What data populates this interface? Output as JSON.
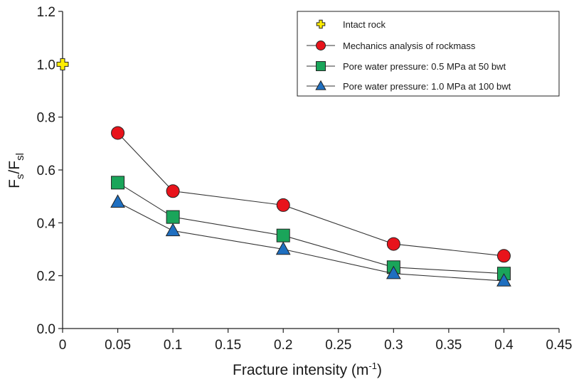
{
  "chart_data": {
    "type": "scatter",
    "xlabel": "Fracture intensity (m",
    "xlabel_sup": "-1",
    "xlabel_end": ")",
    "ylabel_main": "F",
    "ylabel_sub1": "s",
    "ylabel_slash": "/F",
    "ylabel_sub2": "sl",
    "xlim": [
      0,
      0.45
    ],
    "ylim": [
      0,
      1.2
    ],
    "x_tick_labels": [
      "0",
      "0.05",
      "0.1",
      "0.15",
      "0.2",
      "0.25",
      "0.3",
      "0.35",
      "0.4",
      "0.45"
    ],
    "y_tick_labels": [
      "0.0",
      "0.2",
      "0.4",
      "0.6",
      "0.8",
      "1.0",
      "1.2"
    ],
    "legend_position": "top-right",
    "series": [
      {
        "name": "Intact rock",
        "marker": "cross",
        "color": "#ffee00",
        "line": false,
        "x": [
          0
        ],
        "y": [
          1.0
        ]
      },
      {
        "name": "Mechanics analysis of rockmass",
        "marker": "circle",
        "color": "#e8131b",
        "line": true,
        "x": [
          0.05,
          0.1,
          0.2,
          0.3,
          0.4
        ],
        "y": [
          0.74,
          0.52,
          0.467,
          0.32,
          0.275
        ]
      },
      {
        "name": "Pore water pressure: 0.5 MPa at 50 bwt",
        "marker": "square",
        "color": "#1aa55a",
        "line": true,
        "x": [
          0.05,
          0.1,
          0.2,
          0.3,
          0.4
        ],
        "y": [
          0.552,
          0.422,
          0.352,
          0.232,
          0.208
        ]
      },
      {
        "name": "Pore water pressure: 1.0 MPa at 100 bwt",
        "marker": "triangle",
        "color": "#1f6fc0",
        "line": true,
        "x": [
          0.05,
          0.1,
          0.2,
          0.3,
          0.4
        ],
        "y": [
          0.478,
          0.37,
          0.3,
          0.208,
          0.18
        ]
      }
    ]
  }
}
